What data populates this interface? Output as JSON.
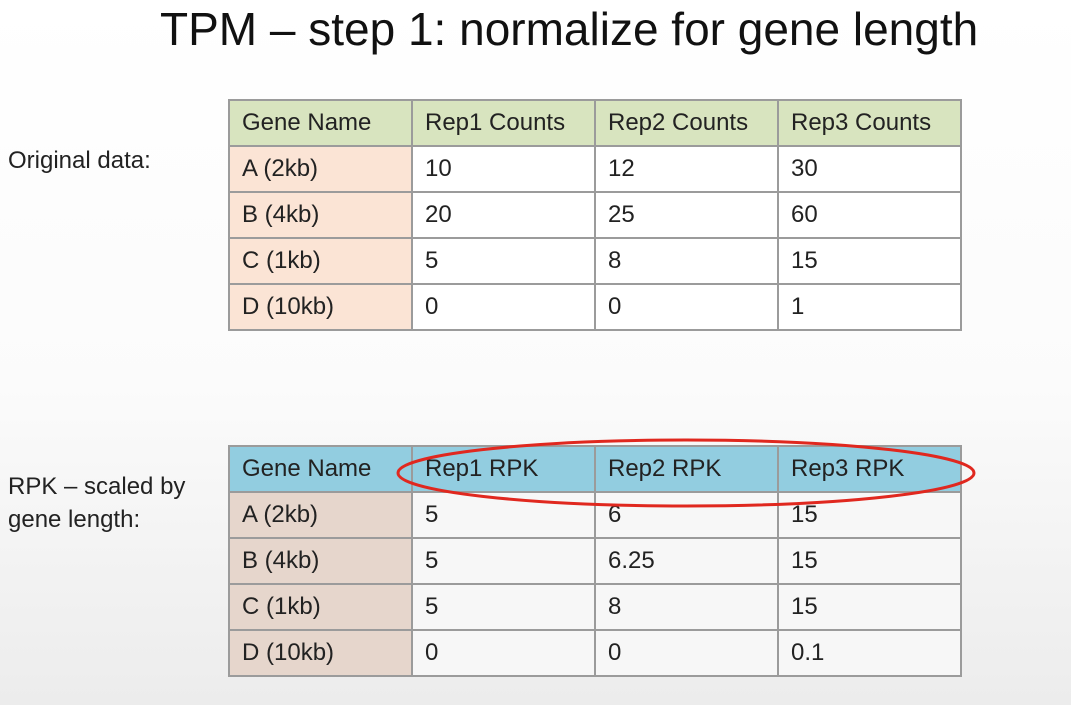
{
  "title": "TPM – step 1: normalize for gene length",
  "original": {
    "label": "Original data:",
    "headers": [
      "Gene Name",
      "Rep1 Counts",
      "Rep2 Counts",
      "Rep3 Counts"
    ],
    "rows": [
      [
        "A (2kb)",
        "10",
        "12",
        "30"
      ],
      [
        "B (4kb)",
        "20",
        "25",
        "60"
      ],
      [
        "C (1kb)",
        "5",
        "8",
        "15"
      ],
      [
        "D (10kb)",
        "0",
        "0",
        "1"
      ]
    ],
    "colors": {
      "header_bg": "#d8e4bf",
      "gene_bg": "#fbe4d5"
    }
  },
  "rpk": {
    "label_lines": [
      "RPK – scaled by",
      "gene length:"
    ],
    "headers": [
      "Gene Name",
      "Rep1 RPK",
      "Rep2 RPK",
      "Rep3 RPK"
    ],
    "rows": [
      [
        "A (2kb)",
        "5",
        "6",
        "15"
      ],
      [
        "B (4kb)",
        "5",
        "6.25",
        "15"
      ],
      [
        "C (1kb)",
        "5",
        "8",
        "15"
      ],
      [
        "D (10kb)",
        "0",
        "0",
        "0.1"
      ]
    ],
    "colors": {
      "header_bg": "#92cde0",
      "gene_bg": "#e6d6cc"
    }
  },
  "annotation": {
    "shape": "ellipse",
    "color": "#e0281f",
    "encircles": "rpk-header-replicate-columns"
  }
}
